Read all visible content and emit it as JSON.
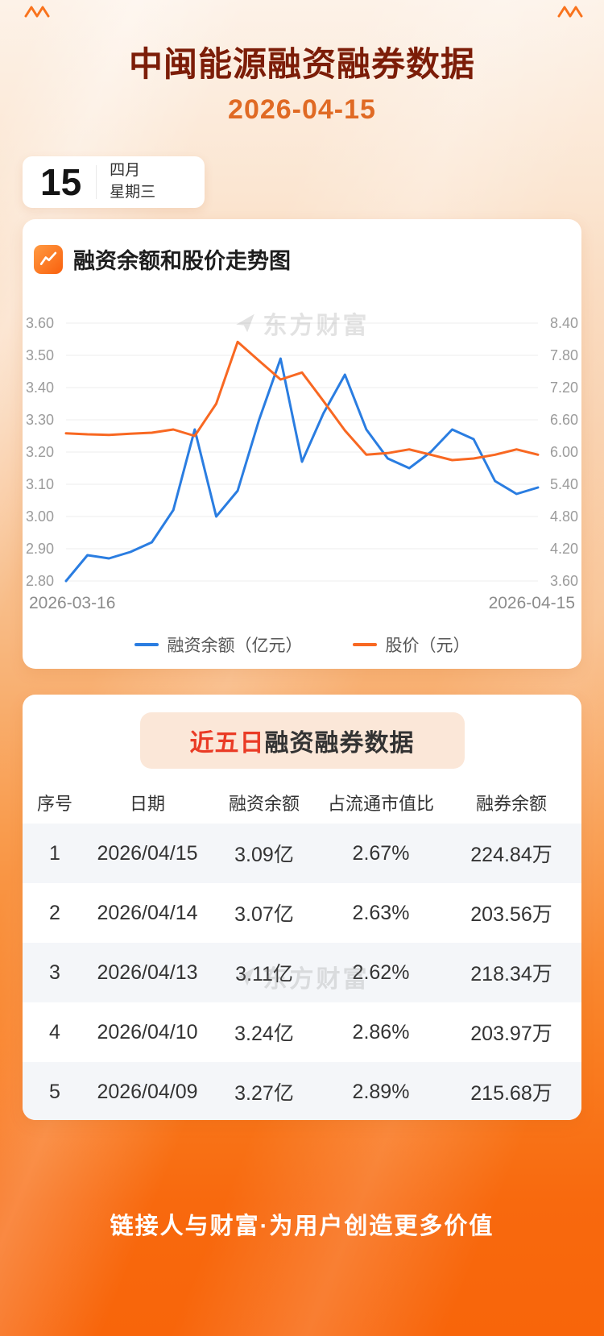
{
  "page": {
    "title": "中闽能源融资融券数据",
    "date": "2026-04-15"
  },
  "date_card": {
    "day": "15",
    "month": "四月",
    "weekday": "星期三"
  },
  "chart_section": {
    "heading": "融资余额和股价走势图",
    "watermark": "东方财富",
    "x_start_label": "2026-03-16",
    "x_end_label": "2026-04-15"
  },
  "chart_data": {
    "type": "line",
    "title": "融资余额和股价走势图",
    "x_start": "2026-03-16",
    "x_end": "2026-04-15",
    "points": 23,
    "grid": true,
    "legend_position": "bottom",
    "left_axis": {
      "label": "融资余额（亿元）",
      "min": 2.8,
      "max": 3.6,
      "ticks": [
        "3.60",
        "3.50",
        "3.40",
        "3.30",
        "3.20",
        "3.10",
        "3.00",
        "2.90",
        "2.80"
      ]
    },
    "right_axis": {
      "label": "股价（元）",
      "min": 3.6,
      "max": 8.4,
      "ticks": [
        "8.40",
        "7.80",
        "7.20",
        "6.60",
        "6.00",
        "5.40",
        "4.80",
        "4.20",
        "3.60"
      ]
    },
    "series": [
      {
        "name": "融资余额（亿元）",
        "axis": "left",
        "color": "#2a7de1",
        "values": [
          2.8,
          2.88,
          2.87,
          2.89,
          2.92,
          3.02,
          3.27,
          3.0,
          3.08,
          3.3,
          3.49,
          3.17,
          3.32,
          3.44,
          3.27,
          3.18,
          3.15,
          3.2,
          3.27,
          3.24,
          3.11,
          3.07,
          3.09
        ]
      },
      {
        "name": "股价（元）",
        "axis": "right",
        "color": "#f86822",
        "values": [
          6.35,
          6.33,
          6.32,
          6.34,
          6.36,
          6.42,
          6.3,
          6.9,
          8.05,
          7.7,
          7.35,
          7.48,
          6.95,
          6.4,
          5.95,
          5.98,
          6.05,
          5.95,
          5.85,
          5.88,
          5.95,
          6.05,
          5.95
        ]
      }
    ]
  },
  "table_section": {
    "badge_highlight": "近五日",
    "badge_rest": "融资融券数据",
    "watermark": "东方财富",
    "columns": [
      "序号",
      "日期",
      "融资余额",
      "占流通市值比",
      "融券余额"
    ],
    "rows": [
      [
        "1",
        "2026/04/15",
        "3.09亿",
        "2.67%",
        "224.84万"
      ],
      [
        "2",
        "2026/04/14",
        "3.07亿",
        "2.63%",
        "203.56万"
      ],
      [
        "3",
        "2026/04/13",
        "3.11亿",
        "2.62%",
        "218.34万"
      ],
      [
        "4",
        "2026/04/10",
        "3.24亿",
        "2.86%",
        "203.97万"
      ],
      [
        "5",
        "2026/04/09",
        "3.27亿",
        "2.89%",
        "215.68万"
      ]
    ]
  },
  "footer": {
    "text": "链接人与财富·为用户创造更多价值"
  },
  "colors": {
    "accent_orange": "#f8650a",
    "title_maroon": "#7c1d08",
    "subtitle_orange": "#e06a24",
    "line_blue": "#2a7de1",
    "line_orange": "#f86822",
    "badge_red": "#ea3b25",
    "badge_bg": "#fbe7d8",
    "alt_row_bg": "#f4f6f9"
  }
}
